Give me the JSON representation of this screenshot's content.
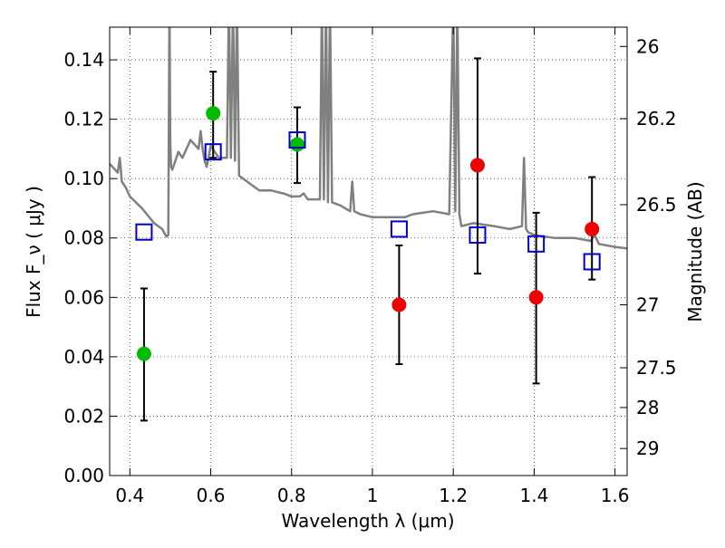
{
  "chart_data": {
    "type": "scatter",
    "xlabel": "Wavelength  λ (μm)",
    "ylabel": "Flux  F_ν  ( μJy )",
    "ylabel_right": "Magnitude (AB)",
    "xlim": [
      0.35,
      1.63
    ],
    "ylim": [
      0.0,
      0.151
    ],
    "grid": true,
    "x_ticks": [
      0.4,
      0.6,
      0.8,
      1.0,
      1.2,
      1.4,
      1.6
    ],
    "x_tick_labels": [
      "0.4",
      "0.6",
      "0.8",
      "1",
      "1.2",
      "1.4",
      "1.6"
    ],
    "y_ticks": [
      0.0,
      0.02,
      0.04,
      0.06,
      0.08,
      0.1,
      0.12,
      0.14
    ],
    "y_tick_labels": [
      "0.00",
      "0.02",
      "0.04",
      "0.06",
      "0.08",
      "0.10",
      "0.12",
      "0.14"
    ],
    "right_axis_ticks": [
      {
        "label": "26",
        "flux": 0.1445
      },
      {
        "label": "26.2",
        "flux": 0.1202
      },
      {
        "label": "26.5",
        "flux": 0.0912
      },
      {
        "label": "27",
        "flux": 0.0575
      },
      {
        "label": "27.5",
        "flux": 0.0363
      },
      {
        "label": "28",
        "flux": 0.0229
      },
      {
        "label": "29",
        "flux": 0.0091
      }
    ],
    "series": [
      {
        "marker": "filled-circle",
        "color": "#00bb00",
        "x": [
          0.435,
          0.606,
          0.814
        ],
        "y": [
          0.041,
          0.122,
          0.1115
        ],
        "yerr_low": [
          0.0185,
          0.107,
          0.0985
        ],
        "yerr_high": [
          0.063,
          0.136,
          0.124
        ]
      },
      {
        "marker": "filled-circle",
        "color": "#ee0000",
        "x": [
          1.066,
          1.26,
          1.405,
          1.543
        ],
        "y": [
          0.0575,
          0.1045,
          0.06,
          0.083
        ],
        "yerr_low": [
          0.0375,
          0.068,
          0.031,
          0.066
        ],
        "yerr_high": [
          0.0775,
          0.1405,
          0.0885,
          0.1005
        ]
      },
      {
        "marker": "open-square",
        "color": "#0000cc",
        "x": [
          0.435,
          0.606,
          0.814,
          1.066,
          1.26,
          1.405,
          1.543
        ],
        "y": [
          0.082,
          0.109,
          0.113,
          0.083,
          0.081,
          0.078,
          0.072
        ]
      }
    ],
    "model_spectrum": {
      "color": "#808080",
      "x": [
        0.35,
        0.37,
        0.375,
        0.38,
        0.39,
        0.4,
        0.43,
        0.46,
        0.48,
        0.49,
        0.495,
        0.498,
        0.5,
        0.502,
        0.505,
        0.51,
        0.52,
        0.53,
        0.55,
        0.57,
        0.575,
        0.58,
        0.585,
        0.59,
        0.6,
        0.62,
        0.63,
        0.64,
        0.645,
        0.65,
        0.655,
        0.66,
        0.665,
        0.67,
        0.7,
        0.72,
        0.75,
        0.78,
        0.8,
        0.82,
        0.83,
        0.84,
        0.86,
        0.87,
        0.875,
        0.88,
        0.885,
        0.89,
        0.895,
        0.9,
        0.92,
        0.945,
        0.95,
        0.955,
        0.97,
        1.0,
        1.05,
        1.08,
        1.1,
        1.15,
        1.19,
        1.2,
        1.205,
        1.21,
        1.215,
        1.22,
        1.25,
        1.3,
        1.34,
        1.37,
        1.375,
        1.38,
        1.385,
        1.4,
        1.45,
        1.5,
        1.54,
        1.55,
        1.56,
        1.6,
        1.63
      ],
      "y": [
        0.105,
        0.102,
        0.107,
        0.099,
        0.097,
        0.094,
        0.09,
        0.085,
        0.083,
        0.0805,
        0.081,
        0.16,
        0.112,
        0.104,
        0.103,
        0.105,
        0.109,
        0.107,
        0.113,
        0.11,
        0.116,
        0.11,
        0.106,
        0.104,
        0.111,
        0.107,
        0.107,
        0.107,
        0.16,
        0.107,
        0.16,
        0.106,
        0.16,
        0.101,
        0.098,
        0.096,
        0.096,
        0.095,
        0.094,
        0.094,
        0.095,
        0.093,
        0.093,
        0.093,
        0.16,
        0.093,
        0.16,
        0.092,
        0.16,
        0.092,
        0.091,
        0.089,
        0.099,
        0.089,
        0.088,
        0.087,
        0.087,
        0.087,
        0.088,
        0.089,
        0.088,
        0.16,
        0.089,
        0.16,
        0.088,
        0.084,
        0.085,
        0.084,
        0.083,
        0.084,
        0.107,
        0.083,
        0.082,
        0.081,
        0.08,
        0.08,
        0.079,
        0.081,
        0.078,
        0.077,
        0.0765
      ]
    }
  }
}
